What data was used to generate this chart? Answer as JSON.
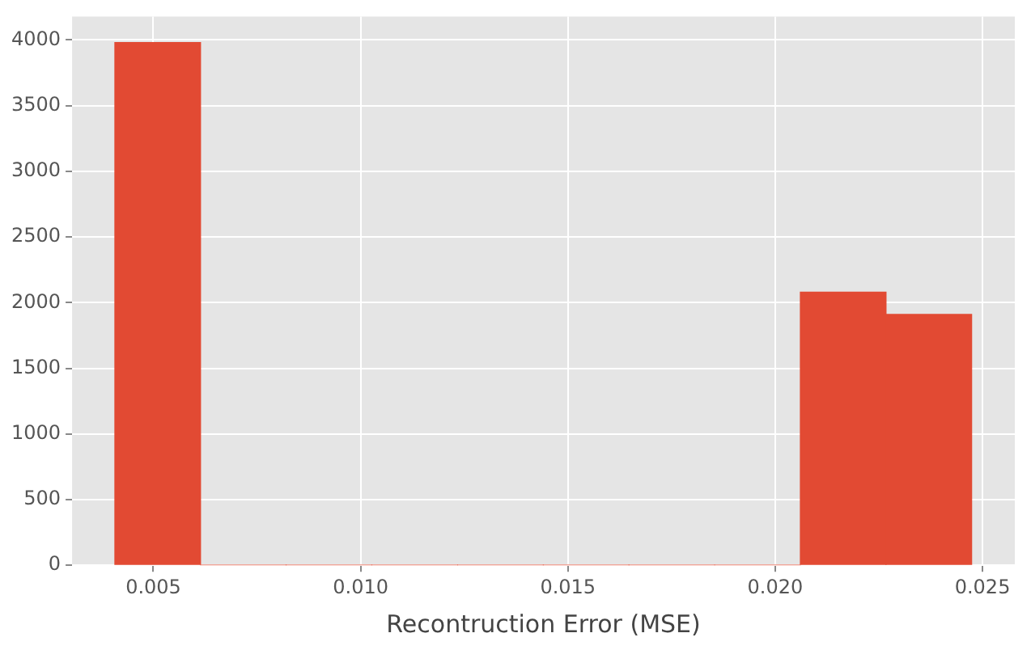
{
  "chart_data": {
    "type": "histogram",
    "xlabel": "Recontruction Error (MSE)",
    "bins": [
      0.00407,
      0.00614,
      0.0082,
      0.01027,
      0.01234,
      0.01441,
      0.01647,
      0.01854,
      0.02061,
      0.02267,
      0.02474
    ],
    "values": [
      3980,
      0,
      0,
      0,
      0,
      0,
      0,
      0,
      2080,
      1910
    ],
    "color": "#e24a33",
    "xlim": [
      0.00304,
      0.02578
    ],
    "xticks": [
      0.005,
      {
        "value": 0.01,
        "label": "0.010"
      },
      0.015,
      {
        "value": 0.02,
        "label": "0.020"
      },
      0.025
    ],
    "ylim": [
      0,
      4179
    ],
    "yticks": [
      0,
      500,
      1000,
      1500,
      2000,
      2500,
      3000,
      3500,
      4000
    ],
    "grid": true
  }
}
